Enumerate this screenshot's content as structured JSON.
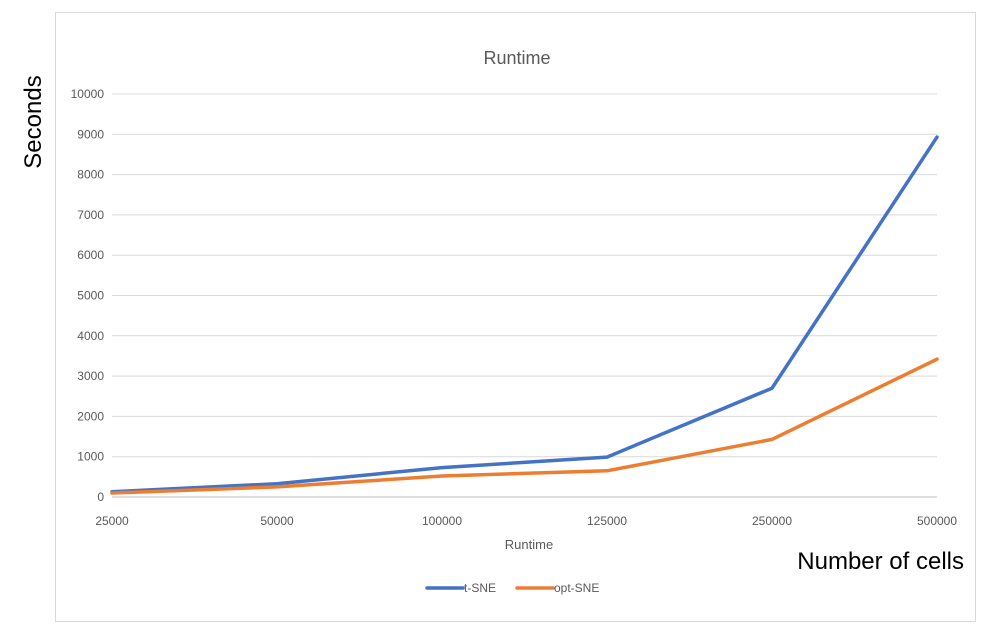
{
  "outer_labels": {
    "ylabel": "Seconds",
    "xlabel": "Number of cells"
  },
  "chart_data": {
    "type": "line",
    "title": "Runtime",
    "xlabel": "Runtime",
    "ylabel": "",
    "categories": [
      "25000",
      "50000",
      "100000",
      "125000",
      "250000",
      "500000"
    ],
    "series": [
      {
        "name": "t-SNE",
        "values": [
          130,
          330,
          730,
          990,
          2700,
          8930
        ],
        "color": "#4472c4"
      },
      {
        "name": "opt-SNE",
        "values": [
          100,
          250,
          520,
          650,
          1430,
          3420
        ],
        "color": "#ed7d31"
      }
    ],
    "ylim": [
      0,
      10000
    ],
    "yticks": [
      "0",
      "1000",
      "2000",
      "3000",
      "4000",
      "5000",
      "6000",
      "7000",
      "8000",
      "9000",
      "10000"
    ],
    "grid": true,
    "legend_position": "bottom"
  }
}
